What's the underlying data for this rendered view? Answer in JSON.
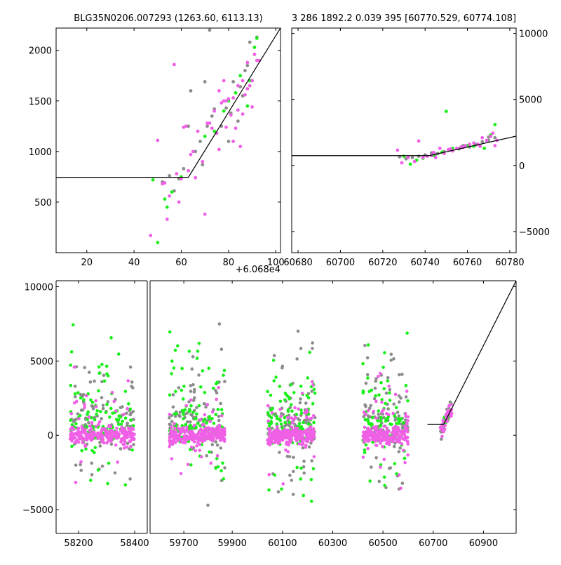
{
  "colors": {
    "grey": "#8c8c8c",
    "green": "#19f019",
    "magenta": "#f060e6",
    "line": "#000000",
    "axis": "#000000"
  },
  "chart_data": [
    {
      "id": "top-left",
      "type": "scatter",
      "title": "BLG35N0206.007293 (1263.60, 6113.13)",
      "xlabel": "",
      "ylabel": "",
      "xlim": [
        7,
        102
      ],
      "ylim": [
        0,
        2220
      ],
      "x_offset_label": "+6.068e4",
      "xticks": [
        "20",
        "40",
        "60",
        "80",
        "100"
      ],
      "yticks": [
        "500",
        "1000",
        "1500",
        "2000"
      ],
      "model_line": {
        "x": [
          7,
          63,
          102
        ],
        "y": [
          745,
          745,
          2220
        ]
      },
      "series": [
        {
          "color": "grey",
          "points": [
            [
              52,
              700
            ],
            [
              55,
              760
            ],
            [
              57,
              610
            ],
            [
              59,
              730
            ],
            [
              61,
              830
            ],
            [
              63,
              1250
            ],
            [
              64,
              1600
            ],
            [
              66,
              1000
            ],
            [
              68,
              1100
            ],
            [
              70,
              1690
            ],
            [
              71,
              1250
            ],
            [
              73,
              1350
            ],
            [
              74,
              1420
            ],
            [
              75,
              1180
            ],
            [
              77,
              1250
            ],
            [
              79,
              1430
            ],
            [
              81,
              1380
            ],
            [
              82,
              1690
            ],
            [
              84,
              1300
            ],
            [
              85,
              1640
            ],
            [
              86,
              1550
            ],
            [
              87,
              1800
            ],
            [
              88,
              1850
            ],
            [
              89,
              2080
            ],
            [
              90,
              1700
            ],
            [
              91,
              1960
            ],
            [
              92,
              2130
            ],
            [
              72,
              2200
            ],
            [
              80,
              1100
            ],
            [
              69,
              870
            ]
          ]
        },
        {
          "color": "green",
          "points": [
            [
              48,
              720
            ],
            [
              50,
              100
            ],
            [
              53,
              530
            ],
            [
              54,
              450
            ],
            [
              56,
              600
            ],
            [
              60,
              750
            ],
            [
              70,
              1150
            ],
            [
              74,
              1200
            ],
            [
              78,
              1400
            ],
            [
              80,
              1500
            ],
            [
              85,
              1750
            ],
            [
              88,
              1450
            ],
            [
              89,
              1700
            ],
            [
              91,
              2030
            ],
            [
              92,
              2120
            ],
            [
              83,
              1580
            ]
          ]
        },
        {
          "color": "magenta",
          "points": [
            [
              47,
              170
            ],
            [
              50,
              1110
            ],
            [
              52,
              680
            ],
            [
              53,
              690
            ],
            [
              54,
              330
            ],
            [
              55,
              560
            ],
            [
              57,
              1860
            ],
            [
              58,
              780
            ],
            [
              59,
              500
            ],
            [
              60,
              730
            ],
            [
              61,
              1240
            ],
            [
              62,
              1250
            ],
            [
              63,
              810
            ],
            [
              64,
              970
            ],
            [
              65,
              1000
            ],
            [
              66,
              740
            ],
            [
              67,
              1200
            ],
            [
              69,
              900
            ],
            [
              70,
              380
            ],
            [
              71,
              1280
            ],
            [
              72,
              1280
            ],
            [
              73,
              1230
            ],
            [
              74,
              1400
            ],
            [
              75,
              1180
            ],
            [
              76,
              1600
            ],
            [
              77,
              1480
            ],
            [
              78,
              1700
            ],
            [
              79,
              1500
            ],
            [
              80,
              1520
            ],
            [
              81,
              1360
            ],
            [
              82,
              1530
            ],
            [
              83,
              1230
            ],
            [
              84,
              1650
            ],
            [
              85,
              1050
            ],
            [
              86,
              1700
            ],
            [
              87,
              1560
            ],
            [
              88,
              1880
            ],
            [
              89,
              1650
            ],
            [
              90,
              1700
            ],
            [
              91,
              1960
            ],
            [
              92,
              1900
            ],
            [
              93,
              1900
            ],
            [
              79,
              1240
            ],
            [
              76,
              1020
            ],
            [
              86,
              1370
            ],
            [
              88,
              1620
            ],
            [
              90,
              1440
            ],
            [
              84,
              1410
            ],
            [
              82,
              1100
            ],
            [
              78,
              1500
            ]
          ]
        }
      ]
    },
    {
      "id": "top-right",
      "type": "scatter",
      "title": "3 286 1892.2 0.039 395 [60770.529, 60774.108]",
      "xlabel": "",
      "ylabel": "",
      "xlim": [
        60677,
        60783
      ],
      "ylim": [
        -6600,
        10400
      ],
      "xticks": [
        "60680",
        "60700",
        "60720",
        "60740",
        "60760",
        "60780"
      ],
      "yticks": [
        "-5000",
        "0",
        "5000",
        "10000"
      ],
      "model_line": {
        "x": [
          60677,
          60742,
          60783
        ],
        "y": [
          745,
          745,
          2220
        ]
      },
      "series": [
        {
          "color": "grey",
          "points": [
            [
              60728,
              650
            ],
            [
              60731,
              500
            ],
            [
              60734,
              600
            ],
            [
              60737,
              700
            ],
            [
              60740,
              800
            ],
            [
              60743,
              950
            ],
            [
              60746,
              900
            ],
            [
              60749,
              1050
            ],
            [
              60752,
              1200
            ],
            [
              60755,
              1300
            ],
            [
              60758,
              1500
            ],
            [
              60761,
              1400
            ],
            [
              60764,
              1600
            ],
            [
              60767,
              1800
            ],
            [
              60770,
              1900
            ],
            [
              60773,
              2100
            ],
            [
              60745,
              850
            ],
            [
              60756,
              1250
            ],
            [
              60764,
              1550
            ],
            [
              60770,
              2150
            ]
          ]
        },
        {
          "color": "green",
          "points": [
            [
              60730,
              700
            ],
            [
              60733,
              100
            ],
            [
              60736,
              400
            ],
            [
              60739,
              550
            ],
            [
              60744,
              750
            ],
            [
              60750,
              4100
            ],
            [
              60753,
              1300
            ],
            [
              60757,
              1400
            ],
            [
              60760,
              1500
            ],
            [
              60763,
              1450
            ],
            [
              60766,
              1500
            ],
            [
              60768,
              1300
            ],
            [
              60771,
              2300
            ],
            [
              60773,
              3100
            ],
            [
              60748,
              1000
            ]
          ]
        },
        {
          "color": "magenta",
          "points": [
            [
              60727,
              1160
            ],
            [
              60729,
              200
            ],
            [
              60732,
              600
            ],
            [
              60735,
              300
            ],
            [
              60737,
              1850
            ],
            [
              60739,
              600
            ],
            [
              60741,
              700
            ],
            [
              60743,
              750
            ],
            [
              60745,
              600
            ],
            [
              60747,
              1300
            ],
            [
              60749,
              900
            ],
            [
              60751,
              1200
            ],
            [
              60753,
              1100
            ],
            [
              60755,
              1300
            ],
            [
              60757,
              1400
            ],
            [
              60759,
              1500
            ],
            [
              60761,
              1600
            ],
            [
              60763,
              1700
            ],
            [
              60765,
              1600
            ],
            [
              60767,
              2100
            ],
            [
              60769,
              1900
            ],
            [
              60771,
              2200
            ],
            [
              60773,
              1500
            ],
            [
              60774,
              1900
            ],
            [
              60744,
              980
            ],
            [
              60752,
              1250
            ],
            [
              60758,
              1360
            ],
            [
              60766,
              1450
            ],
            [
              60772,
              2450
            ]
          ]
        }
      ]
    },
    {
      "id": "bottom",
      "type": "scatter",
      "title": "",
      "xlabel": "",
      "ylabel": "",
      "ylim": [
        -6600,
        10400
      ],
      "xticks": [
        "58200",
        "58400",
        "59700",
        "59900",
        "60100",
        "60300",
        "60500",
        "60700",
        "60900"
      ],
      "yticks": [
        "-5000",
        "0",
        "5000",
        "10000"
      ],
      "seasons": [
        {
          "start": 58170,
          "end": 58400,
          "jd_start": 58120,
          "jd_end": 58445
        },
        {
          "start": 59640,
          "end": 59870,
          "jd_start": 59560,
          "jd_end": 59880
        },
        {
          "start": 60040,
          "end": 60230,
          "jd_start": 59880,
          "jd_end": 61030
        }
      ],
      "dense_clusters": [
        {
          "jd_start": 58170,
          "jd_end": 58400,
          "n": 420
        },
        {
          "jd_start": 59640,
          "jd_end": 59870,
          "n": 420
        },
        {
          "jd_start": 60040,
          "jd_end": 60230,
          "n": 420
        },
        {
          "jd_start": 60420,
          "jd_end": 60600,
          "n": 380
        },
        {
          "jd_start": 60727,
          "jd_end": 60774,
          "n": 60
        }
      ],
      "model_line": {
        "x": [
          60677,
          60742,
          61030
        ],
        "y": [
          745,
          745,
          10400
        ]
      }
    }
  ]
}
